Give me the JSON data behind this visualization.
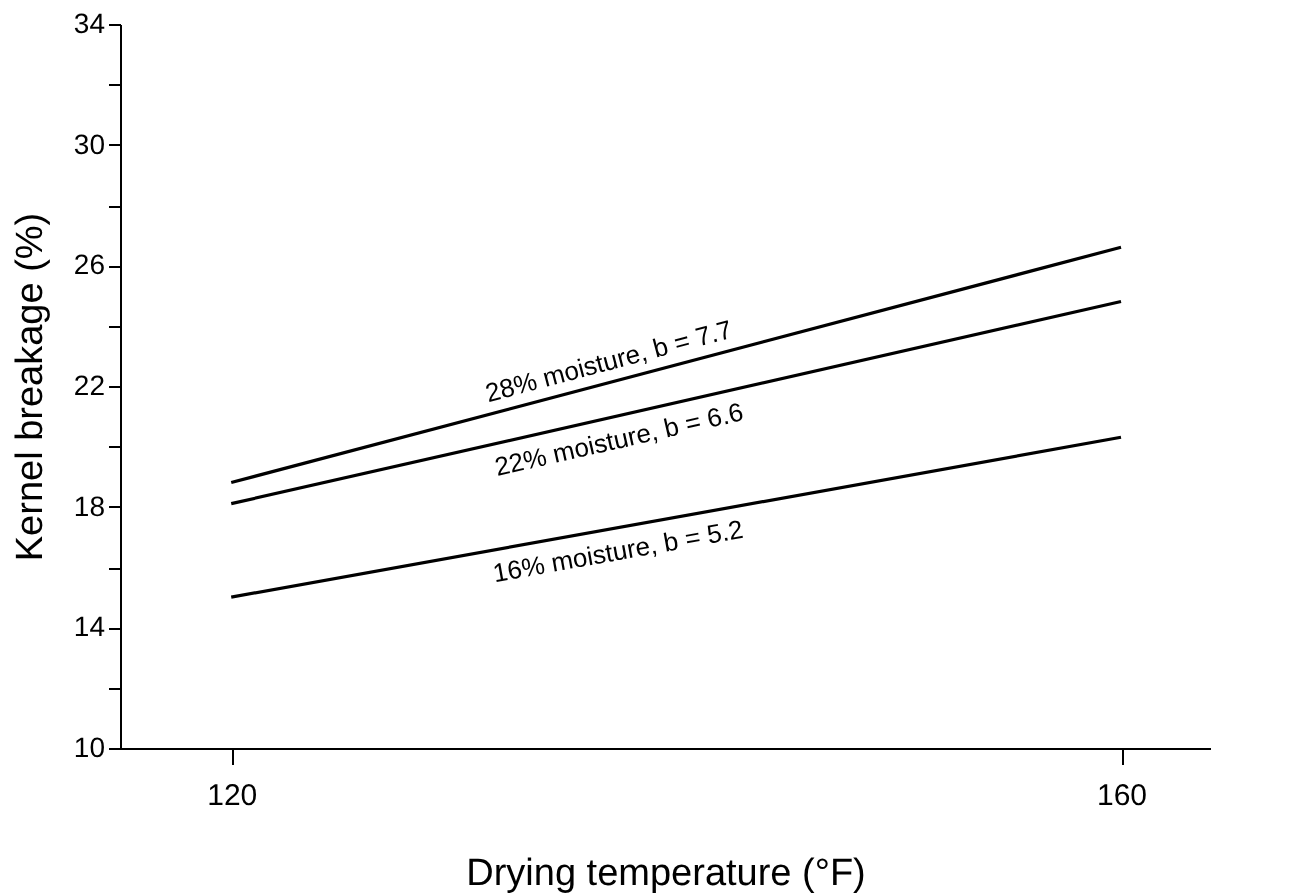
{
  "chart_data": {
    "type": "line",
    "xlabel": "Drying temperature (°F)",
    "ylabel": "Kernel breakage (%)",
    "x": [
      120,
      160
    ],
    "series": [
      {
        "name": "28% moisture, b = 7.7",
        "color": "#000000",
        "values": [
          18.8,
          26.6
        ]
      },
      {
        "name": "22% moisture, b = 6.6",
        "color": "#000000",
        "values": [
          18.1,
          24.8
        ]
      },
      {
        "name": "16% moisture, b = 5.2",
        "color": "#000000",
        "values": [
          15.0,
          20.3
        ]
      }
    ],
    "xlim": [
      115,
      164
    ],
    "xticks": [
      120,
      160
    ],
    "ylim": [
      10,
      34
    ],
    "yticks": [
      10,
      {
        "value": 12,
        "label": null
      },
      14,
      {
        "value": 16,
        "label": null
      },
      18,
      {
        "value": 20,
        "label": null
      },
      22,
      {
        "value": 24,
        "label": null
      },
      26,
      {
        "value": 28,
        "label": null
      },
      30,
      {
        "value": 32,
        "label": null
      },
      34
    ],
    "grid": false,
    "marker": "none",
    "line_style": "solid"
  }
}
